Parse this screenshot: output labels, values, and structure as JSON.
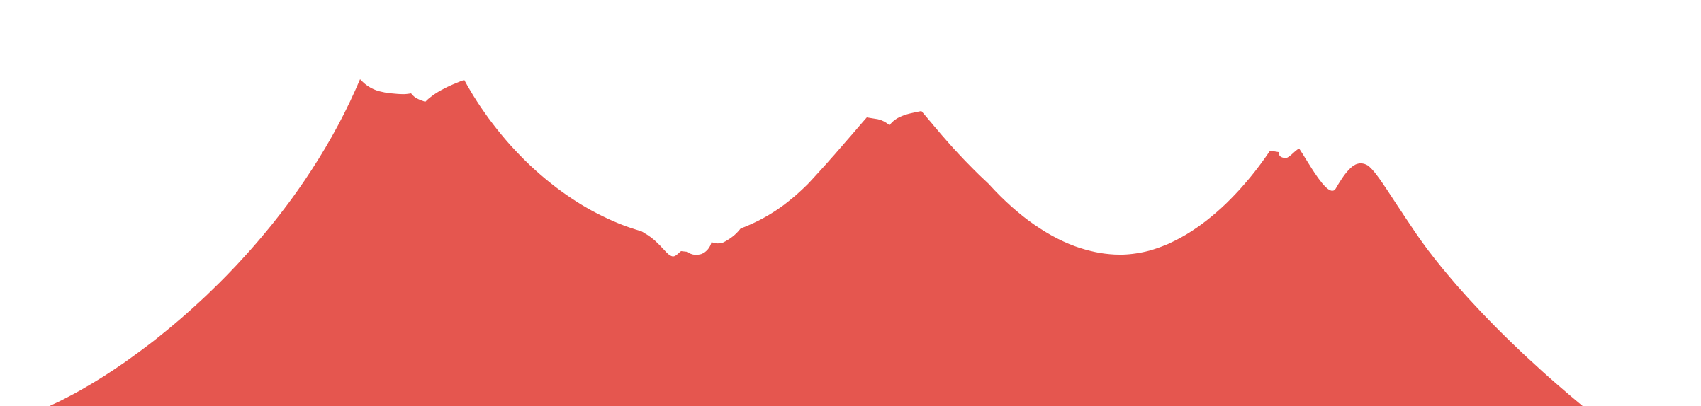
{
  "scene": {
    "background_color": "#ffffff",
    "shape_color": "#e5564f",
    "shape_kind": "mountain-silhouette",
    "peaks_visible": 3
  }
}
